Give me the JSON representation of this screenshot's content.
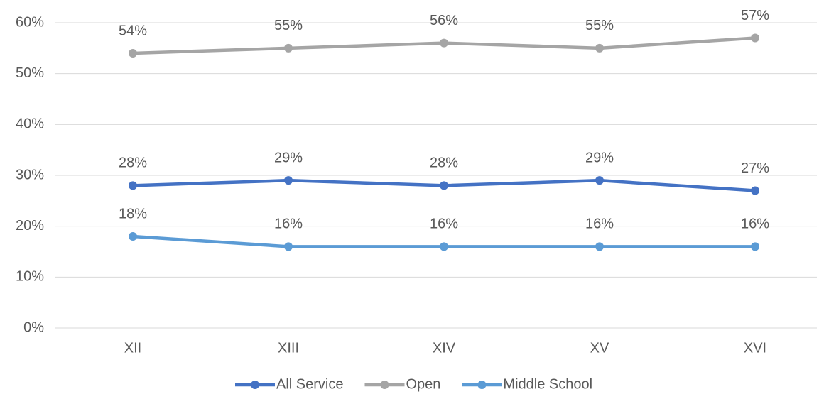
{
  "chart_data": {
    "type": "line",
    "categories": [
      "XII",
      "XIII",
      "XIV",
      "XV",
      "XVI"
    ],
    "series": [
      {
        "name": "All Service",
        "color": "#4472c4",
        "values": [
          28,
          29,
          28,
          29,
          27
        ],
        "value_labels": [
          "28%",
          "29%",
          "28%",
          "29%",
          "27%"
        ]
      },
      {
        "name": "Open",
        "color": "#a5a5a5",
        "values": [
          54,
          55,
          56,
          55,
          57
        ],
        "value_labels": [
          "54%",
          "55%",
          "56%",
          "55%",
          "57%"
        ]
      },
      {
        "name": "Middle School",
        "color": "#5b9bd5",
        "values": [
          18,
          16,
          16,
          16,
          16
        ],
        "value_labels": [
          "18%",
          "16%",
          "16%",
          "16%",
          "16%"
        ]
      }
    ],
    "ylim": [
      0,
      60
    ],
    "yticks": [
      {
        "value": 0,
        "label": "0%"
      },
      {
        "value": 10,
        "label": "10%"
      },
      {
        "value": 20,
        "label": "20%"
      },
      {
        "value": 30,
        "label": "30%"
      },
      {
        "value": 40,
        "label": "40%"
      },
      {
        "value": 50,
        "label": "50%"
      },
      {
        "value": 60,
        "label": "60%"
      }
    ],
    "grid": true,
    "legend": "bottom"
  }
}
